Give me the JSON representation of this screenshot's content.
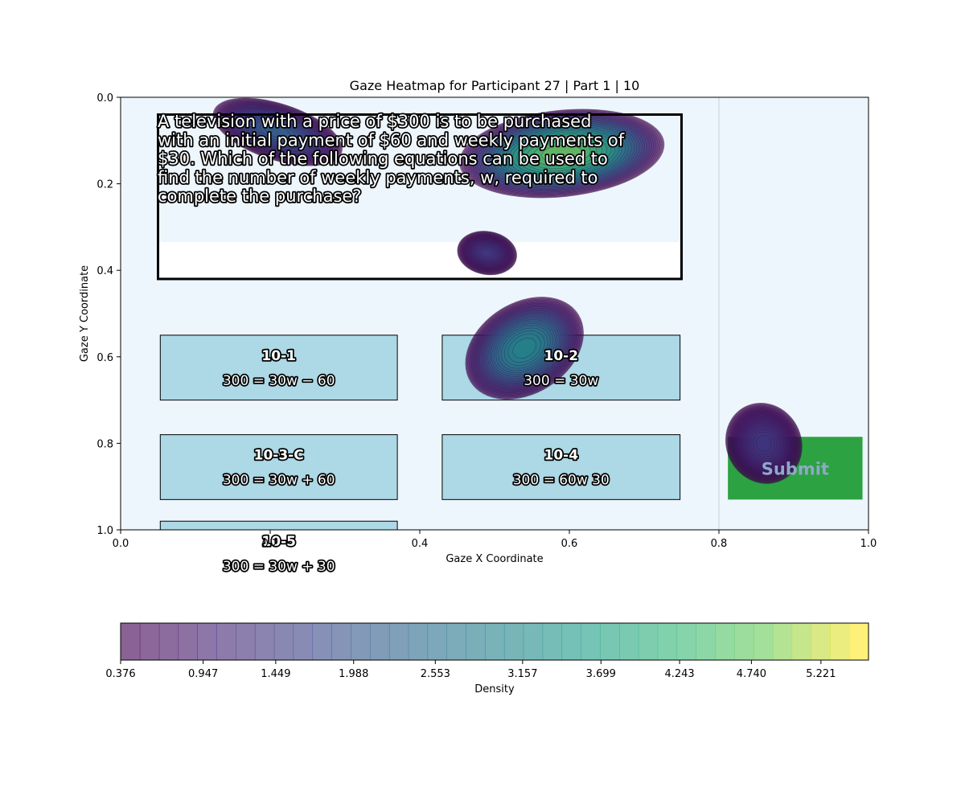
{
  "chart_data": {
    "type": "heatmap",
    "title": "Gaze Heatmap for Participant 27 | Part 1 | 10",
    "xlabel": "Gaze X Coordinate",
    "ylabel": "Gaze Y Coordinate",
    "xlim": [
      0,
      1
    ],
    "ylim": [
      1,
      0
    ],
    "y_axis_inverted": true,
    "x_ticks": [
      "0.0",
      "0.2",
      "0.4",
      "0.6",
      "0.8",
      "1.0"
    ],
    "y_ticks": [
      "0.0",
      "0.2",
      "0.4",
      "0.6",
      "0.8",
      "1.0"
    ],
    "grid": false,
    "colormap": "viridis",
    "colorbar": {
      "label": "Density",
      "min": 0.376,
      "max": 5.55,
      "ticks": [
        "0.376",
        "0.947",
        "1.449",
        "1.988",
        "2.553",
        "3.157",
        "3.699",
        "4.243",
        "4.740",
        "5.221"
      ]
    },
    "gaze_clusters": [
      {
        "x": 0.59,
        "y": 0.13,
        "peak_density": 5.5
      },
      {
        "x": 0.21,
        "y": 0.08,
        "peak_density": 2.6
      },
      {
        "x": 0.54,
        "y": 0.58,
        "peak_density": 3.7
      },
      {
        "x": 0.86,
        "y": 0.8,
        "peak_density": 1.6
      }
    ],
    "question": {
      "text_lines": [
        "A television with a price of $300 is to be purchased",
        "with an initial payment of $60 and weekly payments of",
        "$30. Which of the following equations can be used to",
        "find the number of weekly payments, w, required to",
        "complete the purchase?"
      ],
      "region": {
        "x0": 0.05,
        "x1": 0.75,
        "y0": 0.04,
        "y1": 0.42
      }
    },
    "answer_options": [
      {
        "id": "10-1",
        "equation": "300 = 30w − 60",
        "region": {
          "x0": 0.053,
          "x1": 0.37,
          "y0": 0.55,
          "y1": 0.7
        }
      },
      {
        "id": "10-2",
        "equation": "300 = 30w",
        "region": {
          "x0": 0.43,
          "x1": 0.748,
          "y0": 0.55,
          "y1": 0.7
        }
      },
      {
        "id": "10-3-C",
        "equation": "300 = 30w + 60",
        "region": {
          "x0": 0.053,
          "x1": 0.37,
          "y0": 0.78,
          "y1": 0.93
        }
      },
      {
        "id": "10-4",
        "equation": "300 = 60w 30",
        "region": {
          "x0": 0.43,
          "x1": 0.748,
          "y0": 0.78,
          "y1": 0.93
        }
      },
      {
        "id": "10-5",
        "equation": "300 = 30w + 30",
        "region": {
          "x0": 0.053,
          "x1": 0.37,
          "y0": 0.98,
          "y1": 1.13
        }
      }
    ],
    "submit_button": {
      "label": "Submit",
      "region": {
        "x0": 0.812,
        "x1": 0.992,
        "y0": 0.785,
        "y1": 0.93
      }
    },
    "divider_x": 0.8
  },
  "colors": {
    "plot_background": "#eef6fd",
    "option_fill": "#add8e6",
    "submit_fill": "#2ca243",
    "submit_text": "#8fa8c8",
    "divider": "#d6dde3"
  }
}
